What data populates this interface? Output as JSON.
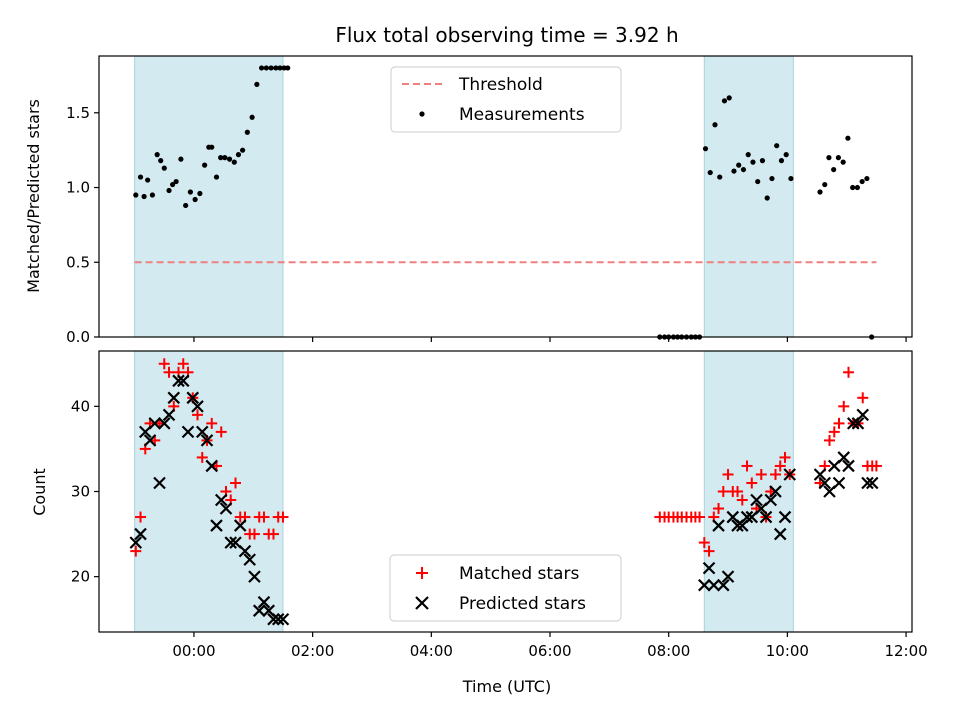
{
  "chart_data": {
    "type": "scatter",
    "title": "Flux total observing time = 3.92 h",
    "xlabel": "Time (UTC)",
    "x_unit": "hours",
    "xlim": [
      -1.6,
      12.1
    ],
    "x_ticks": [
      {
        "value": 0,
        "label": "00:00"
      },
      {
        "value": 2,
        "label": "02:00"
      },
      {
        "value": 4,
        "label": "04:00"
      },
      {
        "value": 6,
        "label": "06:00"
      },
      {
        "value": 8,
        "label": "08:00"
      },
      {
        "value": 10,
        "label": "10:00"
      },
      {
        "value": 12,
        "label": "12:00"
      }
    ],
    "shaded_intervals": [
      [
        -1.0,
        1.5
      ],
      [
        8.6,
        10.1
      ]
    ],
    "shade_color": "#d3eaf0",
    "panels": [
      {
        "id": "ratio",
        "ylabel": "Matched/Predicted stars",
        "ylim": [
          0,
          1.88
        ],
        "y_ticks": [
          {
            "value": 0.0,
            "label": "0.0"
          },
          {
            "value": 0.5,
            "label": "0.5"
          },
          {
            "value": 1.0,
            "label": "1.0"
          },
          {
            "value": 1.5,
            "label": "1.5"
          }
        ],
        "threshold": {
          "name": "Threshold",
          "value": 0.5,
          "x_range": [
            -1.0,
            11.5
          ],
          "color": "#f08080"
        },
        "series": [
          {
            "name": "Measurements",
            "marker": "dot",
            "color": "#000000",
            "x": [
              -0.98,
              -0.9,
              -0.84,
              -0.78,
              -0.7,
              -0.62,
              -0.56,
              -0.5,
              -0.42,
              -0.36,
              -0.3,
              -0.22,
              -0.14,
              -0.06,
              0.02,
              0.1,
              0.18,
              0.25,
              0.3,
              0.38,
              0.45,
              0.52,
              0.6,
              0.68,
              0.75,
              0.82,
              0.9,
              0.98,
              1.06,
              1.14,
              1.22,
              1.3,
              1.38,
              1.45,
              1.52,
              1.58,
              8.62,
              8.7,
              8.78,
              8.86,
              8.94,
              9.02,
              9.1,
              9.18,
              9.26,
              9.34,
              9.42,
              9.5,
              9.58,
              9.66,
              9.74,
              9.82,
              9.9,
              9.98,
              10.06,
              10.55,
              10.63,
              10.7,
              10.78,
              10.86,
              10.94,
              11.02,
              11.1,
              11.18,
              11.26,
              11.34,
              11.42
            ],
            "y": [
              0.95,
              1.07,
              0.94,
              1.05,
              0.95,
              1.22,
              1.18,
              1.13,
              0.98,
              1.02,
              1.04,
              1.19,
              0.88,
              0.97,
              0.92,
              0.96,
              1.15,
              1.27,
              1.27,
              1.07,
              1.2,
              1.2,
              1.19,
              1.17,
              1.22,
              1.25,
              1.37,
              1.47,
              1.69,
              1.8,
              1.8,
              1.8,
              1.8,
              1.8,
              1.8,
              1.8,
              1.26,
              1.1,
              1.42,
              1.07,
              1.58,
              1.6,
              1.11,
              1.15,
              1.12,
              1.22,
              1.17,
              1.04,
              1.18,
              0.93,
              1.06,
              1.28,
              1.18,
              1.22,
              1.06,
              0.97,
              1.02,
              1.2,
              1.12,
              1.2,
              1.17,
              1.33,
              1.0,
              1.0,
              1.04,
              1.06,
              0.0
            ],
            "zero_points_x": [
              7.85,
              7.93,
              8.0,
              8.08,
              8.15,
              8.22,
              8.3,
              8.38,
              8.45,
              8.52
            ]
          }
        ]
      },
      {
        "id": "count",
        "ylabel": "Count",
        "ylim": [
          13.5,
          46.5
        ],
        "y_ticks": [
          {
            "value": 20,
            "label": "20"
          },
          {
            "value": 30,
            "label": "30"
          },
          {
            "value": 40,
            "label": "40"
          }
        ],
        "series": [
          {
            "name": "Matched stars",
            "marker": "plus",
            "color": "#ff0000",
            "x": [
              -0.98,
              -0.9,
              -0.82,
              -0.74,
              -0.66,
              -0.58,
              -0.5,
              -0.42,
              -0.34,
              -0.26,
              -0.18,
              -0.1,
              -0.02,
              0.06,
              0.14,
              0.22,
              0.3,
              0.38,
              0.46,
              0.54,
              0.62,
              0.7,
              0.78,
              0.86,
              0.94,
              1.02,
              1.1,
              1.18,
              1.26,
              1.34,
              1.42,
              1.5,
              7.85,
              7.93,
              8.0,
              8.08,
              8.15,
              8.22,
              8.3,
              8.38,
              8.45,
              8.52,
              8.6,
              8.68,
              8.76,
              8.84,
              8.92,
              9.0,
              9.08,
              9.16,
              9.24,
              9.32,
              9.4,
              9.48,
              9.56,
              9.64,
              9.72,
              9.8,
              9.88,
              9.96,
              10.04,
              10.55,
              10.63,
              10.71,
              10.79,
              10.87,
              10.95,
              11.03,
              11.11,
              11.19,
              11.27,
              11.35,
              11.43,
              11.5
            ],
            "y": [
              23,
              27,
              35,
              38,
              36,
              38,
              45,
              44,
              40,
              44,
              45,
              44,
              41,
              39,
              34,
              36,
              38,
              33,
              37,
              30,
              29,
              31,
              27,
              27,
              25,
              25,
              27,
              27,
              25,
              25,
              27,
              27,
              27,
              27,
              27,
              27,
              27,
              27,
              27,
              27,
              27,
              27,
              24,
              23,
              27,
              28,
              30,
              32,
              30,
              30,
              29,
              33,
              31,
              28,
              32,
              27,
              30,
              32,
              33,
              34,
              32,
              31,
              33,
              36,
              37,
              38,
              40,
              44,
              38,
              38,
              41,
              33,
              33,
              33
            ],
            "x_fix": true
          },
          {
            "name": "Predicted stars",
            "marker": "x",
            "color": "#000000",
            "x": [
              -0.98,
              -0.9,
              -0.82,
              -0.74,
              -0.66,
              -0.58,
              -0.5,
              -0.42,
              -0.34,
              -0.26,
              -0.18,
              -0.1,
              -0.02,
              0.06,
              0.14,
              0.22,
              0.3,
              0.38,
              0.46,
              0.54,
              0.62,
              0.7,
              0.78,
              0.86,
              0.94,
              1.02,
              1.1,
              1.18,
              1.26,
              1.34,
              1.42,
              1.5,
              8.6,
              8.68,
              8.76,
              8.84,
              8.92,
              9.0,
              9.08,
              9.16,
              9.24,
              9.32,
              9.4,
              9.48,
              9.56,
              9.64,
              9.72,
              9.8,
              9.88,
              9.96,
              10.04,
              10.55,
              10.63,
              10.71,
              10.79,
              10.87,
              10.95,
              11.03,
              11.11,
              11.19,
              11.27,
              11.35,
              11.43
            ],
            "y": [
              24,
              25,
              37,
              36,
              38,
              31,
              38,
              39,
              41,
              43,
              43,
              37,
              41,
              40,
              37,
              36,
              33,
              26,
              29,
              28,
              24,
              24,
              26,
              23,
              22,
              20,
              16,
              17,
              16,
              15,
              15,
              15,
              19,
              21,
              19,
              26,
              19,
              20,
              27,
              26,
              26,
              27,
              27,
              29,
              28,
              27,
              29,
              30,
              25,
              27,
              32,
              32,
              31,
              30,
              33,
              31,
              34,
              33,
              38,
              38,
              39,
              31,
              31
            ]
          }
        ]
      }
    ]
  }
}
